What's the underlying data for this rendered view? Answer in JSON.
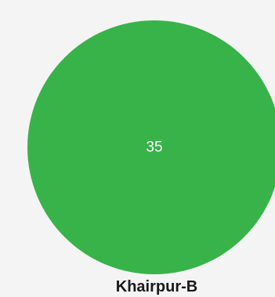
{
  "chart_data": {
    "type": "pie",
    "categories": [
      "Khairpur-B"
    ],
    "values": [
      35
    ],
    "data_labels": [
      "35"
    ],
    "colors": [
      "#38b349"
    ]
  },
  "background_color": "#f4f4f4"
}
